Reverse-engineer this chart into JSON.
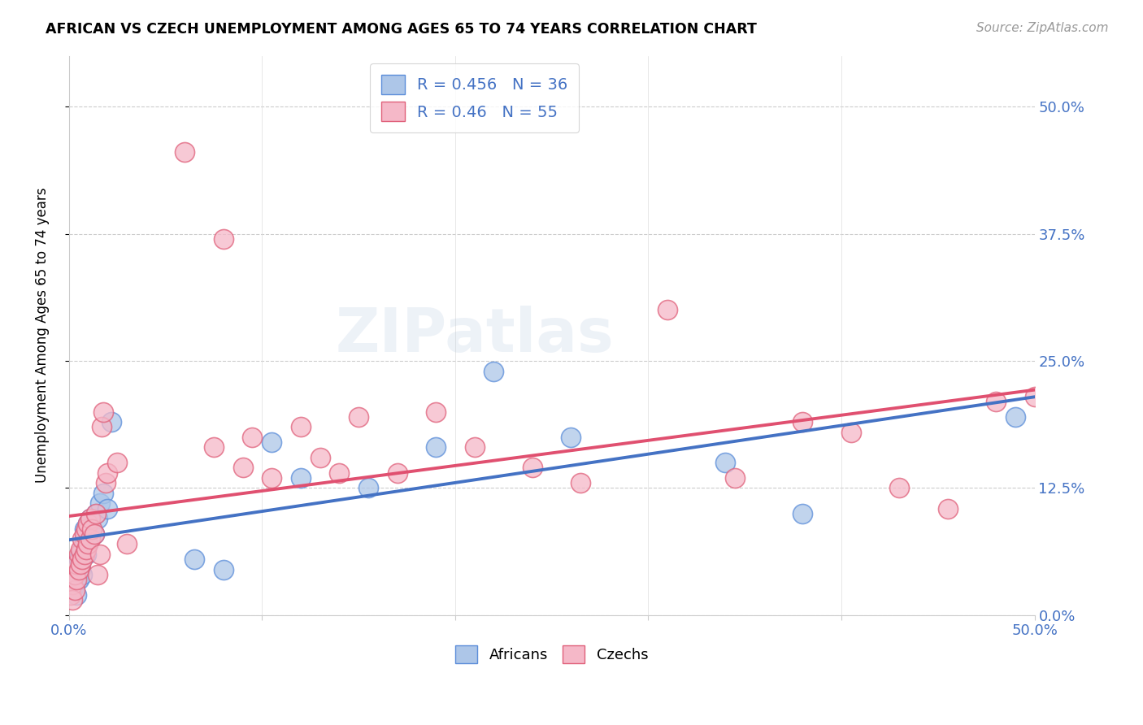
{
  "title": "AFRICAN VS CZECH UNEMPLOYMENT AMONG AGES 65 TO 74 YEARS CORRELATION CHART",
  "source": "Source: ZipAtlas.com",
  "ylabel": "Unemployment Among Ages 65 to 74 years",
  "xlim": [
    0.0,
    0.5
  ],
  "ylim": [
    0.0,
    0.55
  ],
  "africans_R": 0.456,
  "africans_N": 36,
  "czechs_R": 0.46,
  "czechs_N": 55,
  "blue_fill": "#adc6e8",
  "blue_edge": "#5b8dd9",
  "pink_fill": "#f5b8c8",
  "pink_edge": "#e0607a",
  "blue_line": "#4472c4",
  "pink_line": "#e05070",
  "axis_text_color": "#4472c4",
  "watermark": "ZIPatlas",
  "africans_x": [
    0.002,
    0.003,
    0.004,
    0.004,
    0.005,
    0.005,
    0.006,
    0.006,
    0.007,
    0.007,
    0.008,
    0.008,
    0.009,
    0.009,
    0.01,
    0.01,
    0.011,
    0.012,
    0.013,
    0.014,
    0.015,
    0.016,
    0.018,
    0.02,
    0.022,
    0.065,
    0.08,
    0.105,
    0.12,
    0.155,
    0.19,
    0.22,
    0.26,
    0.34,
    0.38,
    0.49
  ],
  "africans_y": [
    0.025,
    0.03,
    0.02,
    0.04,
    0.035,
    0.055,
    0.045,
    0.06,
    0.04,
    0.065,
    0.075,
    0.085,
    0.06,
    0.08,
    0.07,
    0.09,
    0.095,
    0.085,
    0.08,
    0.1,
    0.095,
    0.11,
    0.12,
    0.105,
    0.19,
    0.055,
    0.045,
    0.17,
    0.135,
    0.125,
    0.165,
    0.24,
    0.175,
    0.15,
    0.1,
    0.195
  ],
  "czechs_x": [
    0.001,
    0.002,
    0.002,
    0.003,
    0.003,
    0.004,
    0.004,
    0.005,
    0.005,
    0.006,
    0.006,
    0.007,
    0.007,
    0.008,
    0.008,
    0.009,
    0.009,
    0.01,
    0.01,
    0.011,
    0.011,
    0.012,
    0.013,
    0.014,
    0.015,
    0.016,
    0.017,
    0.018,
    0.019,
    0.02,
    0.025,
    0.06,
    0.08,
    0.09,
    0.105,
    0.12,
    0.14,
    0.15,
    0.17,
    0.19,
    0.21,
    0.24,
    0.265,
    0.31,
    0.345,
    0.38,
    0.405,
    0.43,
    0.455,
    0.48,
    0.5,
    0.13,
    0.095,
    0.075,
    0.03
  ],
  "czechs_y": [
    0.02,
    0.03,
    0.015,
    0.025,
    0.04,
    0.035,
    0.05,
    0.045,
    0.06,
    0.05,
    0.065,
    0.055,
    0.075,
    0.06,
    0.08,
    0.065,
    0.085,
    0.07,
    0.09,
    0.075,
    0.095,
    0.085,
    0.08,
    0.1,
    0.04,
    0.06,
    0.185,
    0.2,
    0.13,
    0.14,
    0.15,
    0.455,
    0.37,
    0.145,
    0.135,
    0.185,
    0.14,
    0.195,
    0.14,
    0.2,
    0.165,
    0.145,
    0.13,
    0.3,
    0.135,
    0.19,
    0.18,
    0.125,
    0.105,
    0.21,
    0.215,
    0.155,
    0.175,
    0.165,
    0.07
  ]
}
